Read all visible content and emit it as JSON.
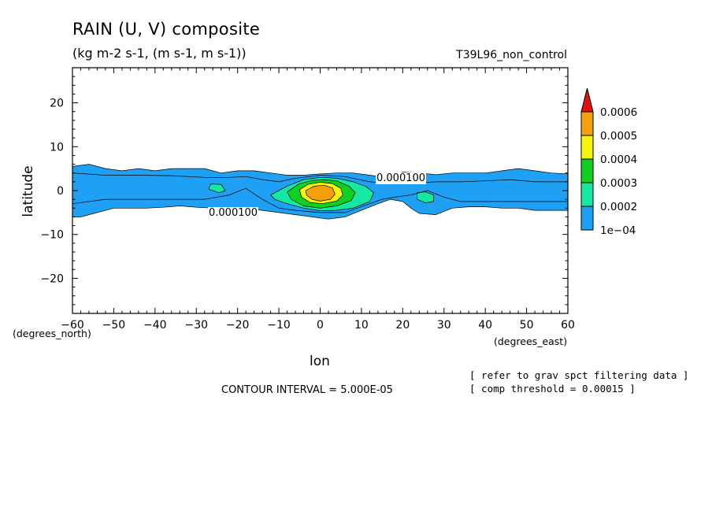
{
  "chart_data": {
    "type": "contour",
    "title": "RAIN (U, V) composite",
    "units_line": "(kg m-2 s-1, (m s-1, m s-1))",
    "run_label": "T39L96_non_control",
    "xlabel": "lon",
    "ylabel": "latitude",
    "x_unit_label": "(degrees_east)",
    "y_unit_label": "(degrees_north)",
    "xlim": [
      -60,
      60
    ],
    "ylim": [
      -28,
      28
    ],
    "x_ticks": [
      -60,
      -50,
      -40,
      -30,
      -20,
      -10,
      0,
      10,
      20,
      30,
      40,
      50,
      60
    ],
    "y_ticks": [
      20,
      10,
      0,
      -10,
      -20
    ],
    "colorbar": {
      "levels": [
        "1e-04",
        "0.0002",
        "0.0003",
        "0.0004",
        "0.0005",
        "0.0006"
      ],
      "colors": [
        "#1ea0f5",
        "#15e8a0",
        "#10d020",
        "#f5f50a",
        "#f5a00a",
        "#e01010"
      ]
    },
    "contour_labels": [
      "0.000100",
      "0.000100"
    ],
    "contour_interval": "CONTOUR INTERVAL = 5.000E-05",
    "notes": [
      "[ refer to grav spct filtering data ]",
      "[ comp threshold = 0.00015 ]"
    ],
    "regions": [
      {
        "level": 0,
        "points": [
          [
            -60,
            5.5
          ],
          [
            -56,
            6
          ],
          [
            -52,
            5
          ],
          [
            -48,
            4.5
          ],
          [
            -44,
            5
          ],
          [
            -40,
            4.5
          ],
          [
            -36,
            5
          ],
          [
            -32,
            5
          ],
          [
            -28,
            5
          ],
          [
            -24,
            4
          ],
          [
            -20,
            4.5
          ],
          [
            -16,
            4.5
          ],
          [
            -12,
            4
          ],
          [
            -8,
            3.5
          ],
          [
            -4,
            3.5
          ],
          [
            0,
            3.8
          ],
          [
            4,
            4
          ],
          [
            8,
            4
          ],
          [
            12,
            3.5
          ],
          [
            16,
            3
          ],
          [
            20,
            4.2
          ],
          [
            24,
            4
          ],
          [
            28,
            3.6
          ],
          [
            32,
            4
          ],
          [
            36,
            4
          ],
          [
            40,
            4
          ],
          [
            44,
            4.5
          ],
          [
            48,
            5
          ],
          [
            52,
            4.5
          ],
          [
            56,
            4
          ],
          [
            60,
            3.8
          ],
          [
            60,
            -4.5
          ],
          [
            56,
            -4.5
          ],
          [
            52,
            -4.5
          ],
          [
            48,
            -4
          ],
          [
            44,
            -4
          ],
          [
            40,
            -3.7
          ],
          [
            36,
            -3.7
          ],
          [
            32,
            -4
          ],
          [
            28,
            -5.5
          ],
          [
            24,
            -5.2
          ],
          [
            22,
            -4
          ],
          [
            20,
            -2.5
          ],
          [
            17,
            -2
          ],
          [
            14,
            -3
          ],
          [
            10,
            -4.5
          ],
          [
            6,
            -6
          ],
          [
            2,
            -6.5
          ],
          [
            -2,
            -6
          ],
          [
            -6,
            -5.5
          ],
          [
            -10,
            -5
          ],
          [
            -14,
            -4.5
          ],
          [
            -18,
            -4
          ],
          [
            -22,
            -4
          ],
          [
            -26,
            -4
          ],
          [
            -30,
            -3.8
          ],
          [
            -34,
            -3.5
          ],
          [
            -38,
            -3.8
          ],
          [
            -42,
            -4
          ],
          [
            -46,
            -4
          ],
          [
            -50,
            -4
          ],
          [
            -54,
            -5
          ],
          [
            -58,
            -6
          ],
          [
            -60,
            -6
          ]
        ]
      },
      {
        "level": 1,
        "points": [
          [
            -26.5,
            1.5
          ],
          [
            -24,
            1.4
          ],
          [
            -23,
            0
          ],
          [
            -24.5,
            -0.5
          ],
          [
            -27,
            0.3
          ]
        ]
      },
      {
        "level": 1,
        "points": [
          [
            23.5,
            -0.5
          ],
          [
            25.5,
            -0.3
          ],
          [
            27.5,
            -1
          ],
          [
            27.5,
            -2.5
          ],
          [
            25.5,
            -2.8
          ],
          [
            23.5,
            -2
          ]
        ]
      },
      {
        "level": 1,
        "points": [
          [
            -12,
            -1
          ],
          [
            -8,
            1
          ],
          [
            -4,
            2.5
          ],
          [
            0,
            3
          ],
          [
            4,
            2.8
          ],
          [
            8,
            2
          ],
          [
            11,
            1
          ],
          [
            13,
            -0.5
          ],
          [
            12,
            -2.5
          ],
          [
            8,
            -4
          ],
          [
            4,
            -4.5
          ],
          [
            0,
            -4.6
          ],
          [
            -4,
            -4
          ],
          [
            -8,
            -3
          ],
          [
            -11,
            -2
          ]
        ]
      },
      {
        "level": 2,
        "points": [
          [
            -8,
            -0.3
          ],
          [
            -5,
            1.6
          ],
          [
            -2,
            2.3
          ],
          [
            1,
            2.5
          ],
          [
            4,
            2.2
          ],
          [
            7,
            1
          ],
          [
            8.5,
            -0.5
          ],
          [
            7.5,
            -2.3
          ],
          [
            4,
            -3.5
          ],
          [
            0,
            -4
          ],
          [
            -4,
            -3.5
          ],
          [
            -7,
            -2
          ]
        ]
      },
      {
        "level": 3,
        "points": [
          [
            -5,
            0.2
          ],
          [
            -3,
            1.4
          ],
          [
            0,
            1.9
          ],
          [
            3,
            1.6
          ],
          [
            5,
            0.5
          ],
          [
            5.5,
            -1
          ],
          [
            4,
            -2.4
          ],
          [
            0.5,
            -3
          ],
          [
            -2.5,
            -2.7
          ],
          [
            -4.5,
            -1.5
          ]
        ]
      },
      {
        "level": 4,
        "points": [
          [
            -3.5,
            0
          ],
          [
            -1.5,
            1
          ],
          [
            1,
            1.2
          ],
          [
            3,
            0.6
          ],
          [
            3.6,
            -0.8
          ],
          [
            2.5,
            -2
          ],
          [
            0,
            -2.4
          ],
          [
            -2,
            -2
          ],
          [
            -3.3,
            -1
          ]
        ]
      }
    ],
    "contour_lines": [
      [
        [
          -60,
          4
        ],
        [
          -52,
          3.5
        ],
        [
          -44,
          3.5
        ],
        [
          -36,
          3.4
        ],
        [
          -28,
          3
        ],
        [
          -22,
          3
        ],
        [
          -18,
          3.2
        ],
        [
          -14,
          2.5
        ],
        [
          -10,
          2
        ],
        [
          -6,
          2.8
        ],
        [
          0,
          3.5
        ],
        [
          6,
          3.2
        ],
        [
          12,
          2
        ],
        [
          16,
          1.7
        ],
        [
          20,
          2
        ],
        [
          24,
          1.8
        ],
        [
          28,
          2
        ],
        [
          34,
          2
        ],
        [
          40,
          2.2
        ],
        [
          46,
          2.5
        ],
        [
          52,
          2
        ],
        [
          60,
          2
        ]
      ],
      [
        [
          -60,
          -3
        ],
        [
          -52,
          -2
        ],
        [
          -44,
          -2
        ],
        [
          -36,
          -2
        ],
        [
          -28,
          -2
        ],
        [
          -22,
          -1
        ],
        [
          -18,
          0.5
        ],
        [
          -14,
          -2
        ],
        [
          -10,
          -4
        ],
        [
          -6,
          -4.5
        ],
        [
          0,
          -5
        ],
        [
          6,
          -5
        ],
        [
          12,
          -3
        ],
        [
          15,
          -2
        ],
        [
          18,
          -1.5
        ],
        [
          22,
          -1
        ],
        [
          26,
          0
        ],
        [
          30,
          -1.5
        ],
        [
          34,
          -2.5
        ],
        [
          40,
          -2.5
        ],
        [
          48,
          -2.5
        ],
        [
          60,
          -2.5
        ]
      ]
    ]
  }
}
